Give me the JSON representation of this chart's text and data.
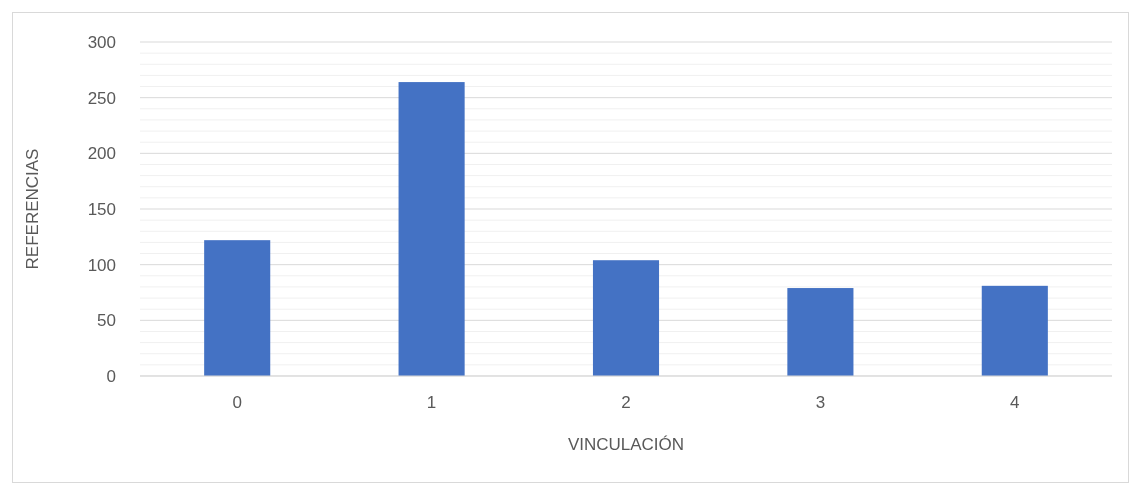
{
  "chart_data": {
    "type": "bar",
    "xlabel": "VINCULACIÓN",
    "ylabel": "REFERENCIAS",
    "categories": [
      "0",
      "1",
      "2",
      "3",
      "4"
    ],
    "values": [
      122,
      264,
      104,
      79,
      81
    ],
    "color": "#4472c4",
    "ylim": [
      0,
      300
    ],
    "yticks": [
      0,
      50,
      100,
      150,
      200,
      250,
      300
    ],
    "grid": "y"
  }
}
